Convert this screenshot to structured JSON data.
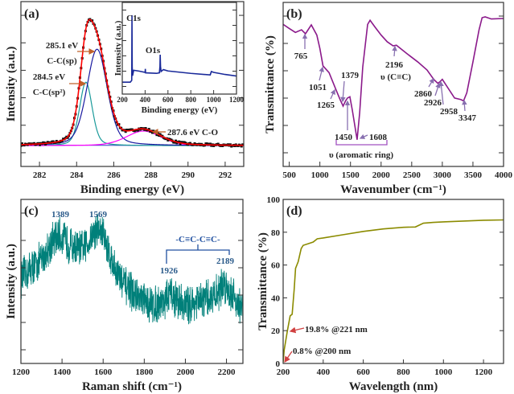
{
  "chart_data": [
    {
      "type": "line",
      "panel_label": "(a)",
      "xlabel": "Binding energy (eV)",
      "ylabel": "Intensity (a.u.)",
      "xlim": [
        281,
        293
      ],
      "ylim": [
        -0.17,
        1.18
      ],
      "xticks": [
        282,
        284,
        286,
        288,
        290,
        292
      ],
      "components": [
        {
          "label": "C-C(sp2)",
          "center": 284.5,
          "height": 0.52,
          "fwhm": 0.8,
          "color": "#1a9a9a"
        },
        {
          "label": "C-C(sp)",
          "center": 285.1,
          "height": 0.79,
          "fwhm": 1.3,
          "color": "#1a1aa0"
        },
        {
          "label": "C-O",
          "center": 287.6,
          "height": 0.12,
          "fwhm": 2.2,
          "color": "#ff00ff"
        }
      ],
      "envelope_color": "#ff0000",
      "data_color": "#111111",
      "annotations": [
        {
          "text": "285.1 eV"
        },
        {
          "text": "C-C(sp)"
        },
        {
          "text": "284.5 eV"
        },
        {
          "text": "C-C(sp²)"
        },
        {
          "text": "287.6 eV C-O"
        }
      ],
      "arrow_color": "#c0602a"
    },
    {
      "type": "line",
      "panel_label": "",
      "inset_of": "(a)",
      "xlabel": "Binding energy (eV)",
      "ylabel": "Intensity (a.u.)",
      "xlim": [
        200,
        1200
      ],
      "ylim": [
        0,
        1
      ],
      "xticks": [
        200,
        400,
        600,
        800,
        1000,
        1200
      ],
      "series": [
        {
          "color": "#1a2a9a",
          "points": [
            [
              200,
              0.13
            ],
            [
              270,
              0.13
            ],
            [
              280,
              0.145
            ],
            [
              283,
              0.15
            ],
            [
              285,
              0.86
            ],
            [
              287,
              0.3
            ],
            [
              290,
              0.2
            ],
            [
              300,
              0.26
            ],
            [
              350,
              0.25
            ],
            [
              400,
              0.237
            ],
            [
              402,
              0.275
            ],
            [
              404,
              0.232
            ],
            [
              500,
              0.226
            ],
            [
              525,
              0.232
            ],
            [
              530,
              0.3
            ],
            [
              532,
              0.43
            ],
            [
              535,
              0.3
            ],
            [
              540,
              0.246
            ],
            [
              560,
              0.267
            ],
            [
              600,
              0.252
            ],
            [
              800,
              0.226
            ],
            [
              970,
              0.209
            ],
            [
              980,
              0.246
            ],
            [
              1000,
              0.237
            ],
            [
              1100,
              0.214
            ],
            [
              1200,
              0.197
            ]
          ]
        }
      ],
      "annotations": [
        {
          "text": "C1s"
        },
        {
          "text": "O1s"
        }
      ]
    },
    {
      "type": "line",
      "panel_label": "(b)",
      "xlabel": "Wavenumber (cm⁻¹)",
      "ylabel": "Transmittance (%)",
      "xlim": [
        400,
        4000
      ],
      "ylim": [
        0,
        1
      ],
      "xticks": [
        500,
        1000,
        1500,
        2000,
        2500,
        3000,
        3500,
        4000
      ],
      "series": [
        {
          "color": "#8b1a8b",
          "points": [
            [
              400,
              0.866
            ],
            [
              500,
              0.841
            ],
            [
              600,
              0.817
            ],
            [
              700,
              0.833
            ],
            [
              765,
              0.809
            ],
            [
              860,
              0.863
            ],
            [
              950,
              0.801
            ],
            [
              1000,
              0.719
            ],
            [
              1051,
              0.613
            ],
            [
              1150,
              0.572
            ],
            [
              1265,
              0.466
            ],
            [
              1330,
              0.408
            ],
            [
              1379,
              0.368
            ],
            [
              1420,
              0.4
            ],
            [
              1450,
              0.417
            ],
            [
              1490,
              0.425
            ],
            [
              1530,
              0.343
            ],
            [
              1608,
              0.163
            ],
            [
              1650,
              0.327
            ],
            [
              1700,
              0.605
            ],
            [
              1780,
              0.866
            ],
            [
              1820,
              0.891
            ],
            [
              1900,
              0.85
            ],
            [
              2000,
              0.801
            ],
            [
              2100,
              0.76
            ],
            [
              2196,
              0.735
            ],
            [
              2250,
              0.739
            ],
            [
              2400,
              0.694
            ],
            [
              2600,
              0.637
            ],
            [
              2750,
              0.588
            ],
            [
              2860,
              0.531
            ],
            [
              2926,
              0.507
            ],
            [
              2958,
              0.515
            ],
            [
              3000,
              0.531
            ],
            [
              3100,
              0.474
            ],
            [
              3200,
              0.417
            ],
            [
              3300,
              0.408
            ],
            [
              3347,
              0.4
            ],
            [
              3400,
              0.449
            ],
            [
              3500,
              0.637
            ],
            [
              3600,
              0.833
            ],
            [
              3650,
              0.907
            ],
            [
              3700,
              0.912
            ],
            [
              3800,
              0.899
            ],
            [
              4000,
              0.902
            ]
          ]
        }
      ],
      "annotations": [
        {
          "text": "765"
        },
        {
          "text": "1051"
        },
        {
          "text": "1265"
        },
        {
          "text": "1379"
        },
        {
          "text": "1450"
        },
        {
          "text": "1608"
        },
        {
          "text": "υ (aromatic ring)"
        },
        {
          "text": "2196"
        },
        {
          "text": "υ (C≡C)"
        },
        {
          "text": "2860"
        },
        {
          "text": "2926"
        },
        {
          "text": "2958"
        },
        {
          "text": "3347"
        }
      ],
      "arrow_color": "#8870b0"
    },
    {
      "type": "line",
      "panel_label": "(c)",
      "xlabel": "Raman shift (cm⁻¹)",
      "ylabel": "Intensity (a.u.)",
      "xlim": [
        1200,
        2280
      ],
      "ylim": [
        0,
        1
      ],
      "xticks": [
        1200,
        1400,
        1600,
        1800,
        2000,
        2200
      ],
      "series": [
        {
          "color": "#00807a",
          "noisy": true,
          "smoothed_profile": [
            [
              1200,
              0.516
            ],
            [
              1250,
              0.581
            ],
            [
              1300,
              0.629
            ],
            [
              1350,
              0.742
            ],
            [
              1389,
              0.774
            ],
            [
              1450,
              0.71
            ],
            [
              1500,
              0.694
            ],
            [
              1550,
              0.79
            ],
            [
              1569,
              0.823
            ],
            [
              1600,
              0.79
            ],
            [
              1650,
              0.597
            ],
            [
              1700,
              0.484
            ],
            [
              1750,
              0.419
            ],
            [
              1800,
              0.371
            ],
            [
              1850,
              0.355
            ],
            [
              1900,
              0.387
            ],
            [
              1926,
              0.419
            ],
            [
              2000,
              0.355
            ],
            [
              2050,
              0.371
            ],
            [
              2100,
              0.387
            ],
            [
              2150,
              0.419
            ],
            [
              2189,
              0.484
            ],
            [
              2230,
              0.419
            ],
            [
              2280,
              0.323
            ]
          ]
        }
      ],
      "annotations": [
        {
          "text": "1389"
        },
        {
          "text": "1569"
        },
        {
          "text": "-C≡C-C≡C-"
        },
        {
          "text": "1926"
        },
        {
          "text": "2189"
        }
      ],
      "annotation_color": "#2a5a8a",
      "bracket_color": "#2050a0"
    },
    {
      "type": "line",
      "panel_label": "(d)",
      "xlabel": "Wavelength (nm)",
      "ylabel": "Transmittance (%)",
      "xlim": [
        200,
        1300
      ],
      "ylim": [
        0,
        100
      ],
      "xticks": [
        200,
        400,
        600,
        800,
        1000,
        1200
      ],
      "yticks": [
        0,
        20,
        40,
        60,
        80,
        100
      ],
      "series": [
        {
          "color": "#8b8b00",
          "points": [
            [
              200,
              0.8
            ],
            [
              205,
              8
            ],
            [
              221,
              19.8
            ],
            [
              235,
              29
            ],
            [
              245,
              30
            ],
            [
              255,
              45
            ],
            [
              262,
              58
            ],
            [
              275,
              62
            ],
            [
              290,
              70
            ],
            [
              300,
              72
            ],
            [
              350,
              74
            ],
            [
              370,
              76
            ],
            [
              400,
              76.5
            ],
            [
              500,
              78.5
            ],
            [
              600,
              80.5
            ],
            [
              700,
              82
            ],
            [
              800,
              83
            ],
            [
              860,
              83.2
            ],
            [
              900,
              85.5
            ],
            [
              950,
              86
            ],
            [
              1000,
              86.3
            ],
            [
              1100,
              86.8
            ],
            [
              1200,
              87.3
            ],
            [
              1300,
              87.5
            ]
          ]
        }
      ],
      "annotations": [
        {
          "text": "19.8% @221 nm"
        },
        {
          "text": "0.8% @200 nm"
        }
      ],
      "arrow_color": "#d04040"
    }
  ]
}
